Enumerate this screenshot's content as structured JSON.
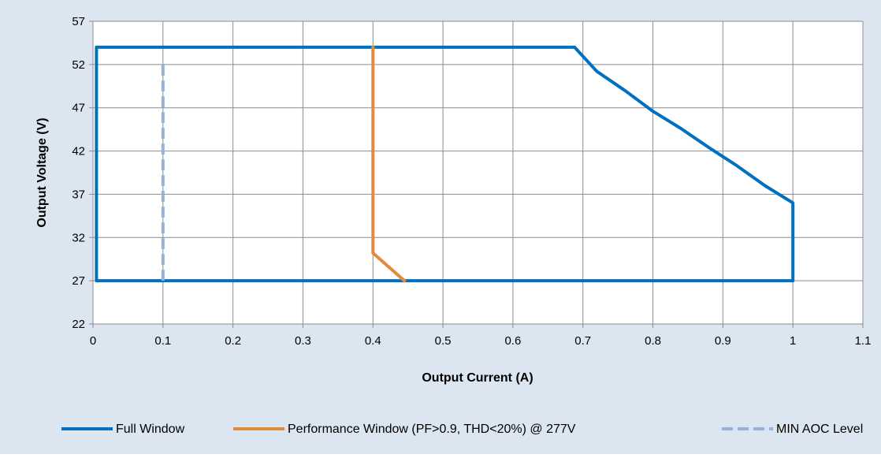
{
  "chart_data": {
    "type": "line",
    "title": "",
    "xlabel": "Output Current (A)",
    "ylabel": "Output Voltage (V)",
    "xlim": [
      0,
      1.1
    ],
    "ylim": [
      22,
      57
    ],
    "x_ticks": [
      "0",
      "0.1",
      "0.2",
      "0.3",
      "0.4",
      "0.5",
      "0.6",
      "0.7",
      "0.8",
      "0.9",
      "1",
      "1.1"
    ],
    "y_ticks": [
      "22",
      "27",
      "32",
      "37",
      "42",
      "47",
      "52",
      "57"
    ],
    "grid": true,
    "legend_position": "bottom",
    "plot_background": "#ffffff",
    "chart_background": "#dce6f1",
    "series": [
      {
        "name": "Full Window",
        "color": "#0070c0",
        "dash": "solid",
        "points": [
          [
            0.005,
            27
          ],
          [
            0.005,
            54
          ],
          [
            0.688,
            54
          ],
          [
            0.72,
            51.2
          ],
          [
            0.76,
            49.0
          ],
          [
            0.8,
            46.6
          ],
          [
            0.84,
            44.6
          ],
          [
            0.88,
            42.4
          ],
          [
            0.92,
            40.3
          ],
          [
            0.96,
            38.0
          ],
          [
            1.0,
            36.0
          ],
          [
            1.0,
            27
          ],
          [
            0.005,
            27
          ]
        ]
      },
      {
        "name": "Performance Window (PF>0.9, THD<20%) @ 277V",
        "color": "#e38b3d",
        "dash": "solid",
        "points": [
          [
            0.4,
            54
          ],
          [
            0.4,
            30.2
          ],
          [
            0.445,
            27
          ]
        ]
      },
      {
        "name": "MIN AOC Level",
        "color": "#95b3d7",
        "dash": "dashed",
        "points": [
          [
            0.1,
            27
          ],
          [
            0.1,
            52.5
          ]
        ]
      }
    ]
  }
}
